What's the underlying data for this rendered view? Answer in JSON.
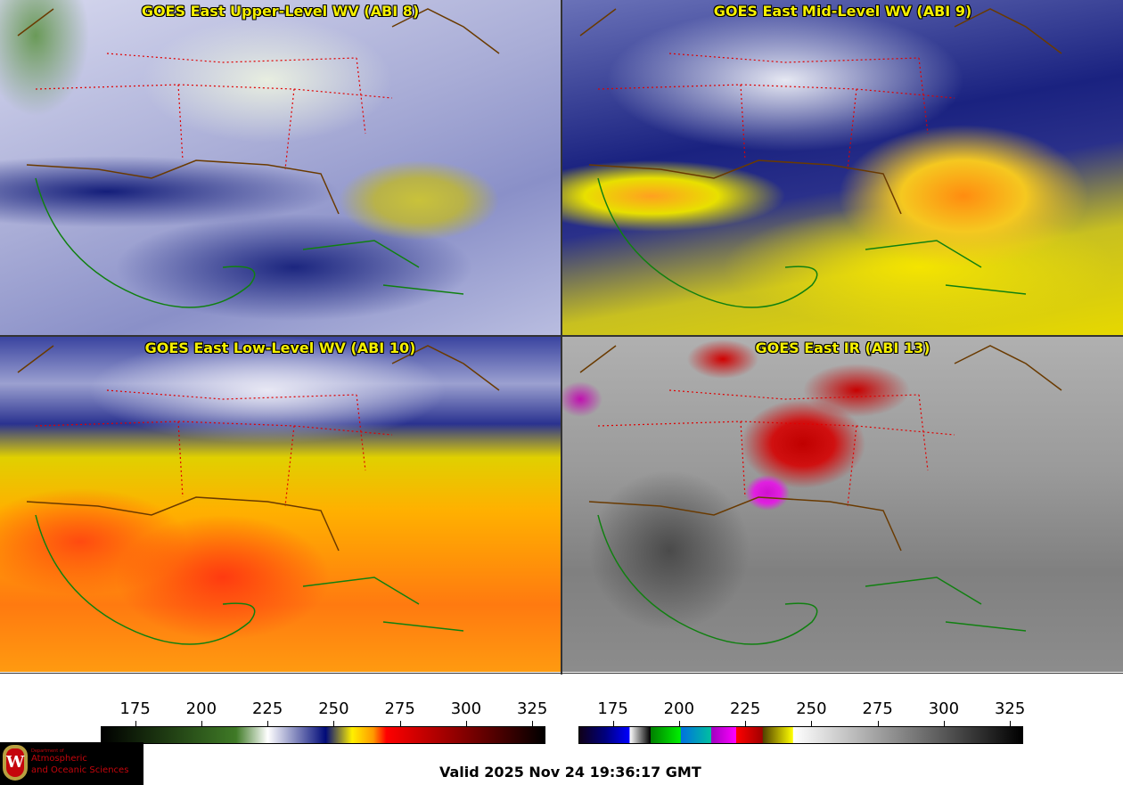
{
  "panels": [
    {
      "title": "GOES East Upper-Level WV (ABI 8)"
    },
    {
      "title": "GOES East Mid-Level WV (ABI 9)"
    },
    {
      "title": "GOES East Low-Level WV (ABI 10)"
    },
    {
      "title": "GOES East IR (ABI 13)"
    }
  ],
  "colorbars": [
    {
      "name": "water-vapor",
      "range": [
        162,
        330
      ],
      "ticks": [
        175,
        200,
        225,
        250,
        275,
        300,
        325
      ],
      "stops": [
        [
          162,
          "#000000"
        ],
        [
          213,
          "#3f7a26"
        ],
        [
          225,
          "#ffffff"
        ],
        [
          247,
          "#000a78"
        ],
        [
          257,
          "#fff000"
        ],
        [
          265,
          "#ff9a00"
        ],
        [
          270,
          "#ff0000"
        ],
        [
          298,
          "#8a0000"
        ],
        [
          330,
          "#000000"
        ]
      ]
    },
    {
      "name": "infrared",
      "range": [
        162,
        330
      ],
      "ticks": [
        175,
        200,
        225,
        250,
        275,
        300,
        325
      ],
      "stops": [
        [
          162,
          "#100018"
        ],
        [
          172,
          "#000080"
        ],
        [
          181,
          "#0000ff"
        ],
        [
          181.1,
          "#ffffff"
        ],
        [
          189,
          "#000000"
        ],
        [
          189.1,
          "#008000"
        ],
        [
          200.4,
          "#00f000"
        ],
        [
          200.5,
          "#0070e0"
        ],
        [
          212,
          "#00c0a0"
        ],
        [
          212.1,
          "#a000c0"
        ],
        [
          221.4,
          "#ff00ff"
        ],
        [
          221.5,
          "#ff0000"
        ],
        [
          231.5,
          "#a00000"
        ],
        [
          231.6,
          "#504000"
        ],
        [
          243,
          "#ffff00"
        ],
        [
          243.1,
          "#ffffff"
        ],
        [
          330,
          "#000000"
        ]
      ]
    }
  ],
  "logo": {
    "line1": "Department of",
    "line2": "Atmospheric",
    "line3": "and Oceanic Sciences",
    "crest_letter": "W"
  },
  "valid_time": "Valid 2025 Nov 24 19:36:17 GMT"
}
